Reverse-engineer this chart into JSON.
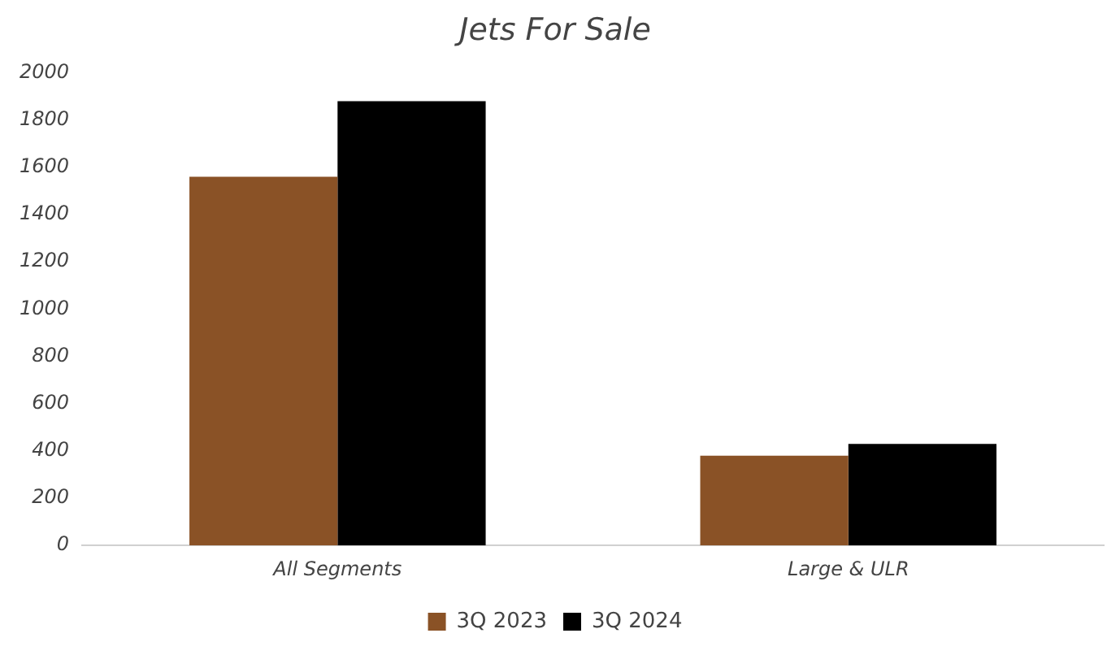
{
  "chart_data": {
    "type": "bar",
    "title": "Jets For Sale",
    "categories": [
      "All Segments",
      "Large & ULR"
    ],
    "series": [
      {
        "name": "3Q 2023",
        "color": "#8a5226",
        "values": [
          1560,
          380
        ]
      },
      {
        "name": "3Q 2024",
        "color": "#000000",
        "values": [
          1880,
          430
        ]
      }
    ],
    "ylim": [
      0,
      2000
    ],
    "yticks": [
      0,
      200,
      400,
      600,
      800,
      1000,
      1200,
      1400,
      1600,
      1800,
      2000
    ],
    "grid": false,
    "legend": "bottom"
  }
}
